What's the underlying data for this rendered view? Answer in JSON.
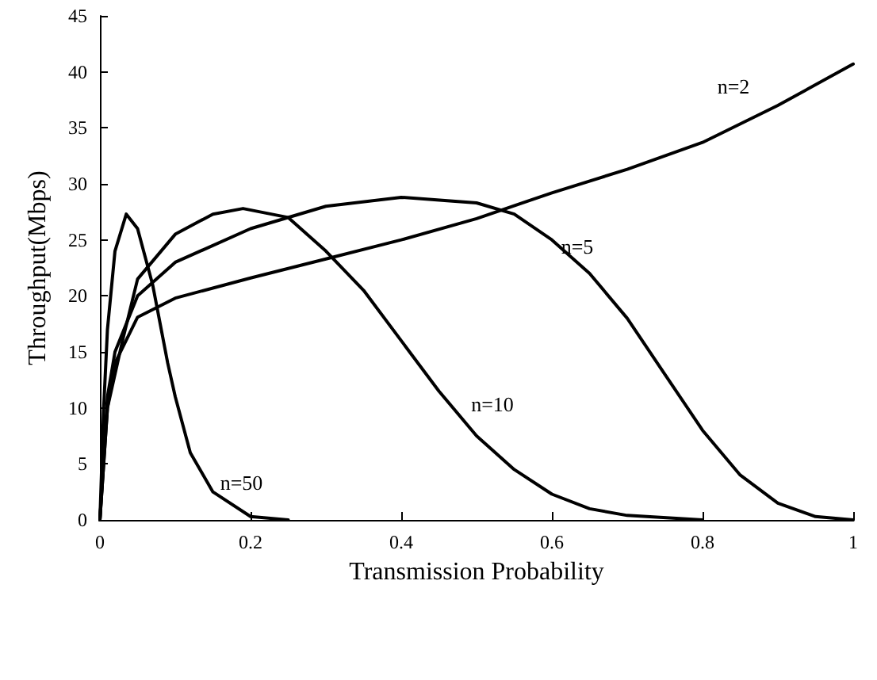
{
  "chart_data": {
    "type": "line",
    "xlabel": "Transmission Probability",
    "ylabel": "Throughput(Mbps)",
    "xlim": [
      0,
      1
    ],
    "ylim": [
      0,
      45
    ],
    "xticks": [
      0,
      0.2,
      0.4,
      0.6,
      0.8,
      1
    ],
    "yticks": [
      0,
      5,
      10,
      15,
      20,
      25,
      30,
      35,
      40,
      45
    ],
    "grid": false,
    "marker": "none",
    "line_style": "solid",
    "series": [
      {
        "name": "n=2",
        "color": "#000000",
        "x": [
          0,
          0.01,
          0.02,
          0.05,
          0.1,
          0.2,
          0.3,
          0.4,
          0.5,
          0.6,
          0.7,
          0.8,
          0.9,
          1
        ],
        "values": [
          0,
          10,
          14,
          18.1,
          19.8,
          21.6,
          23.3,
          25,
          26.9,
          29.2,
          31.3,
          33.7,
          37,
          40.7
        ]
      },
      {
        "name": "n=5",
        "color": "#000000",
        "x": [
          0,
          0.01,
          0.02,
          0.05,
          0.1,
          0.2,
          0.3,
          0.4,
          0.5,
          0.55,
          0.6,
          0.65,
          0.7,
          0.75,
          0.8,
          0.85,
          0.9,
          0.95,
          1
        ],
        "values": [
          0,
          11,
          15,
          20,
          23,
          26,
          28,
          28.8,
          28.3,
          27.3,
          25,
          22,
          18,
          13,
          8,
          4,
          1.5,
          0.3,
          0
        ]
      },
      {
        "name": "n=10",
        "color": "#000000",
        "x": [
          0,
          0.01,
          0.03,
          0.05,
          0.1,
          0.15,
          0.19,
          0.25,
          0.3,
          0.35,
          0.4,
          0.45,
          0.5,
          0.55,
          0.6,
          0.65,
          0.7,
          0.8
        ],
        "values": [
          0,
          10,
          16,
          21.5,
          25.5,
          27.3,
          27.8,
          27,
          24,
          20.5,
          16,
          11.5,
          7.5,
          4.5,
          2.3,
          1,
          0.4,
          0
        ]
      },
      {
        "name": "n=50",
        "color": "#000000",
        "x": [
          0,
          0.005,
          0.01,
          0.02,
          0.035,
          0.05,
          0.07,
          0.09,
          0.1,
          0.12,
          0.15,
          0.2,
          0.25
        ],
        "values": [
          0,
          10,
          17,
          24,
          27.3,
          26,
          21,
          14,
          11,
          6,
          2.5,
          0.3,
          0
        ]
      }
    ]
  }
}
